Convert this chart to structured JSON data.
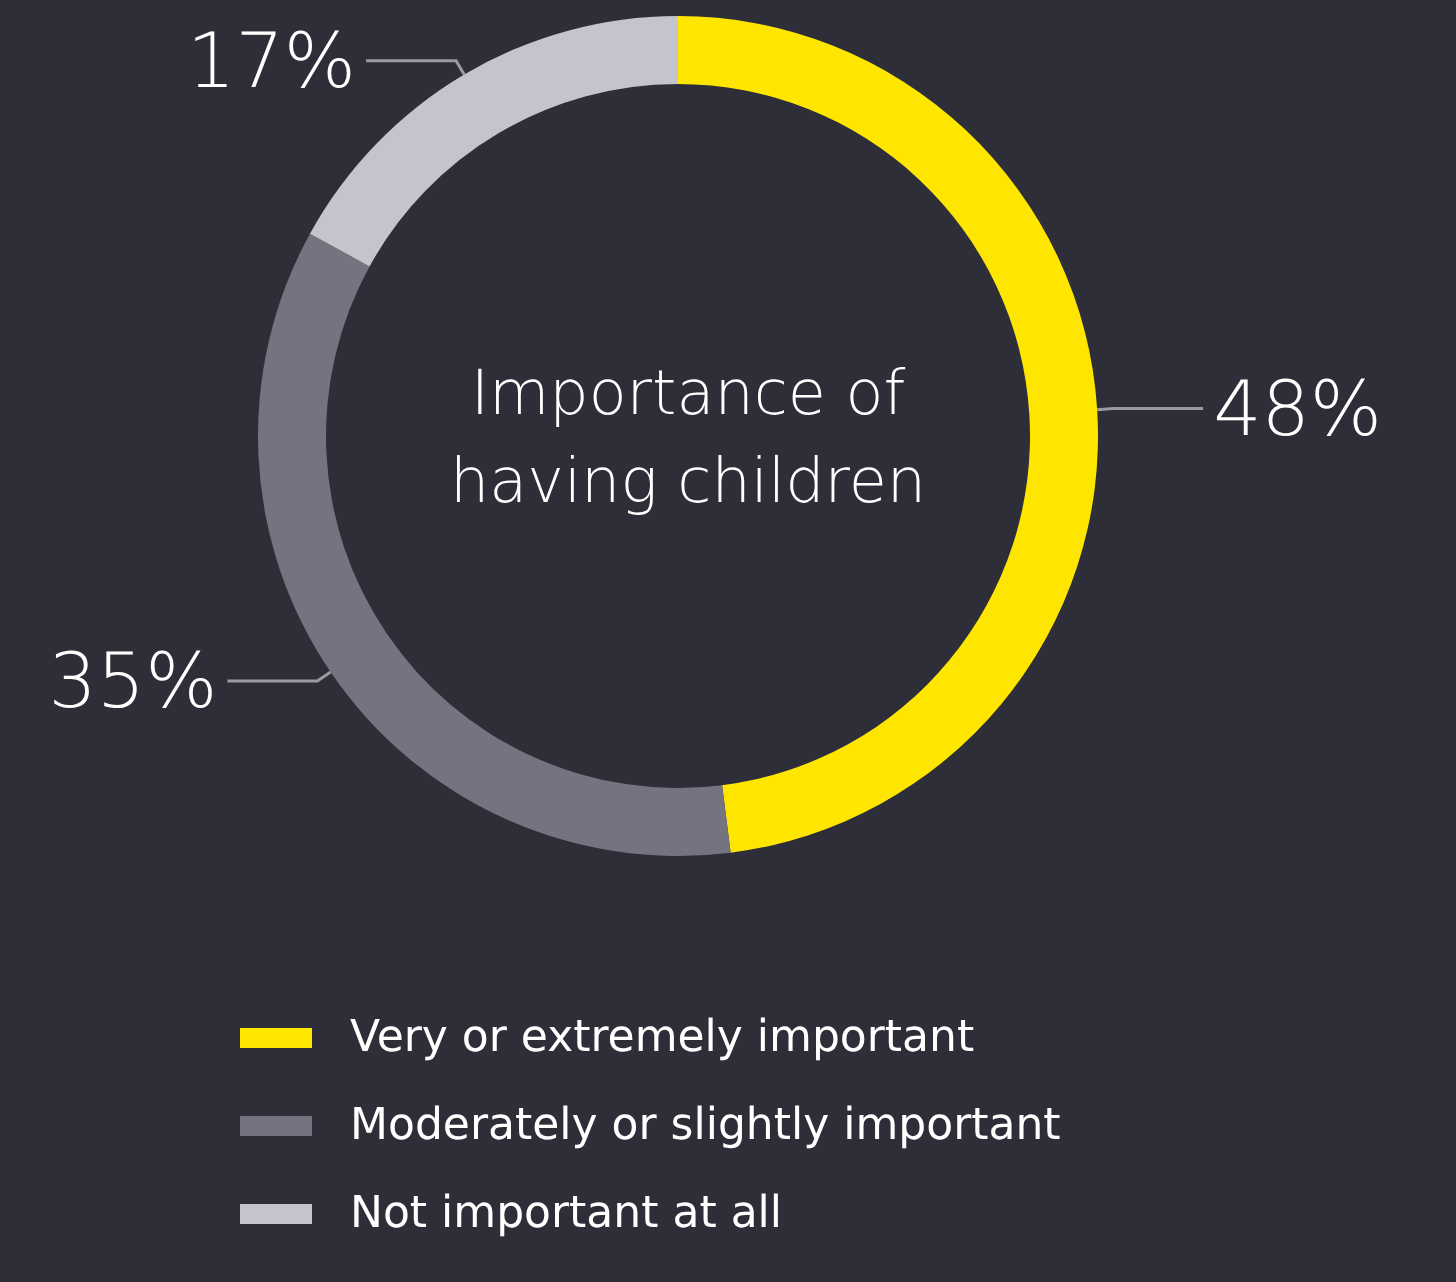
{
  "chart_data": {
    "type": "donut",
    "title": "Importance of\nhaving children",
    "categories": [
      "Very or extremely important",
      "Moderately or slightly important",
      "Not important at all"
    ],
    "values": [
      48,
      35,
      17
    ],
    "colors": [
      "#ffe600",
      "#747480",
      "#c4c4cd"
    ],
    "value_labels": [
      "48%",
      "35%",
      "17%"
    ],
    "legend": "bottom"
  }
}
